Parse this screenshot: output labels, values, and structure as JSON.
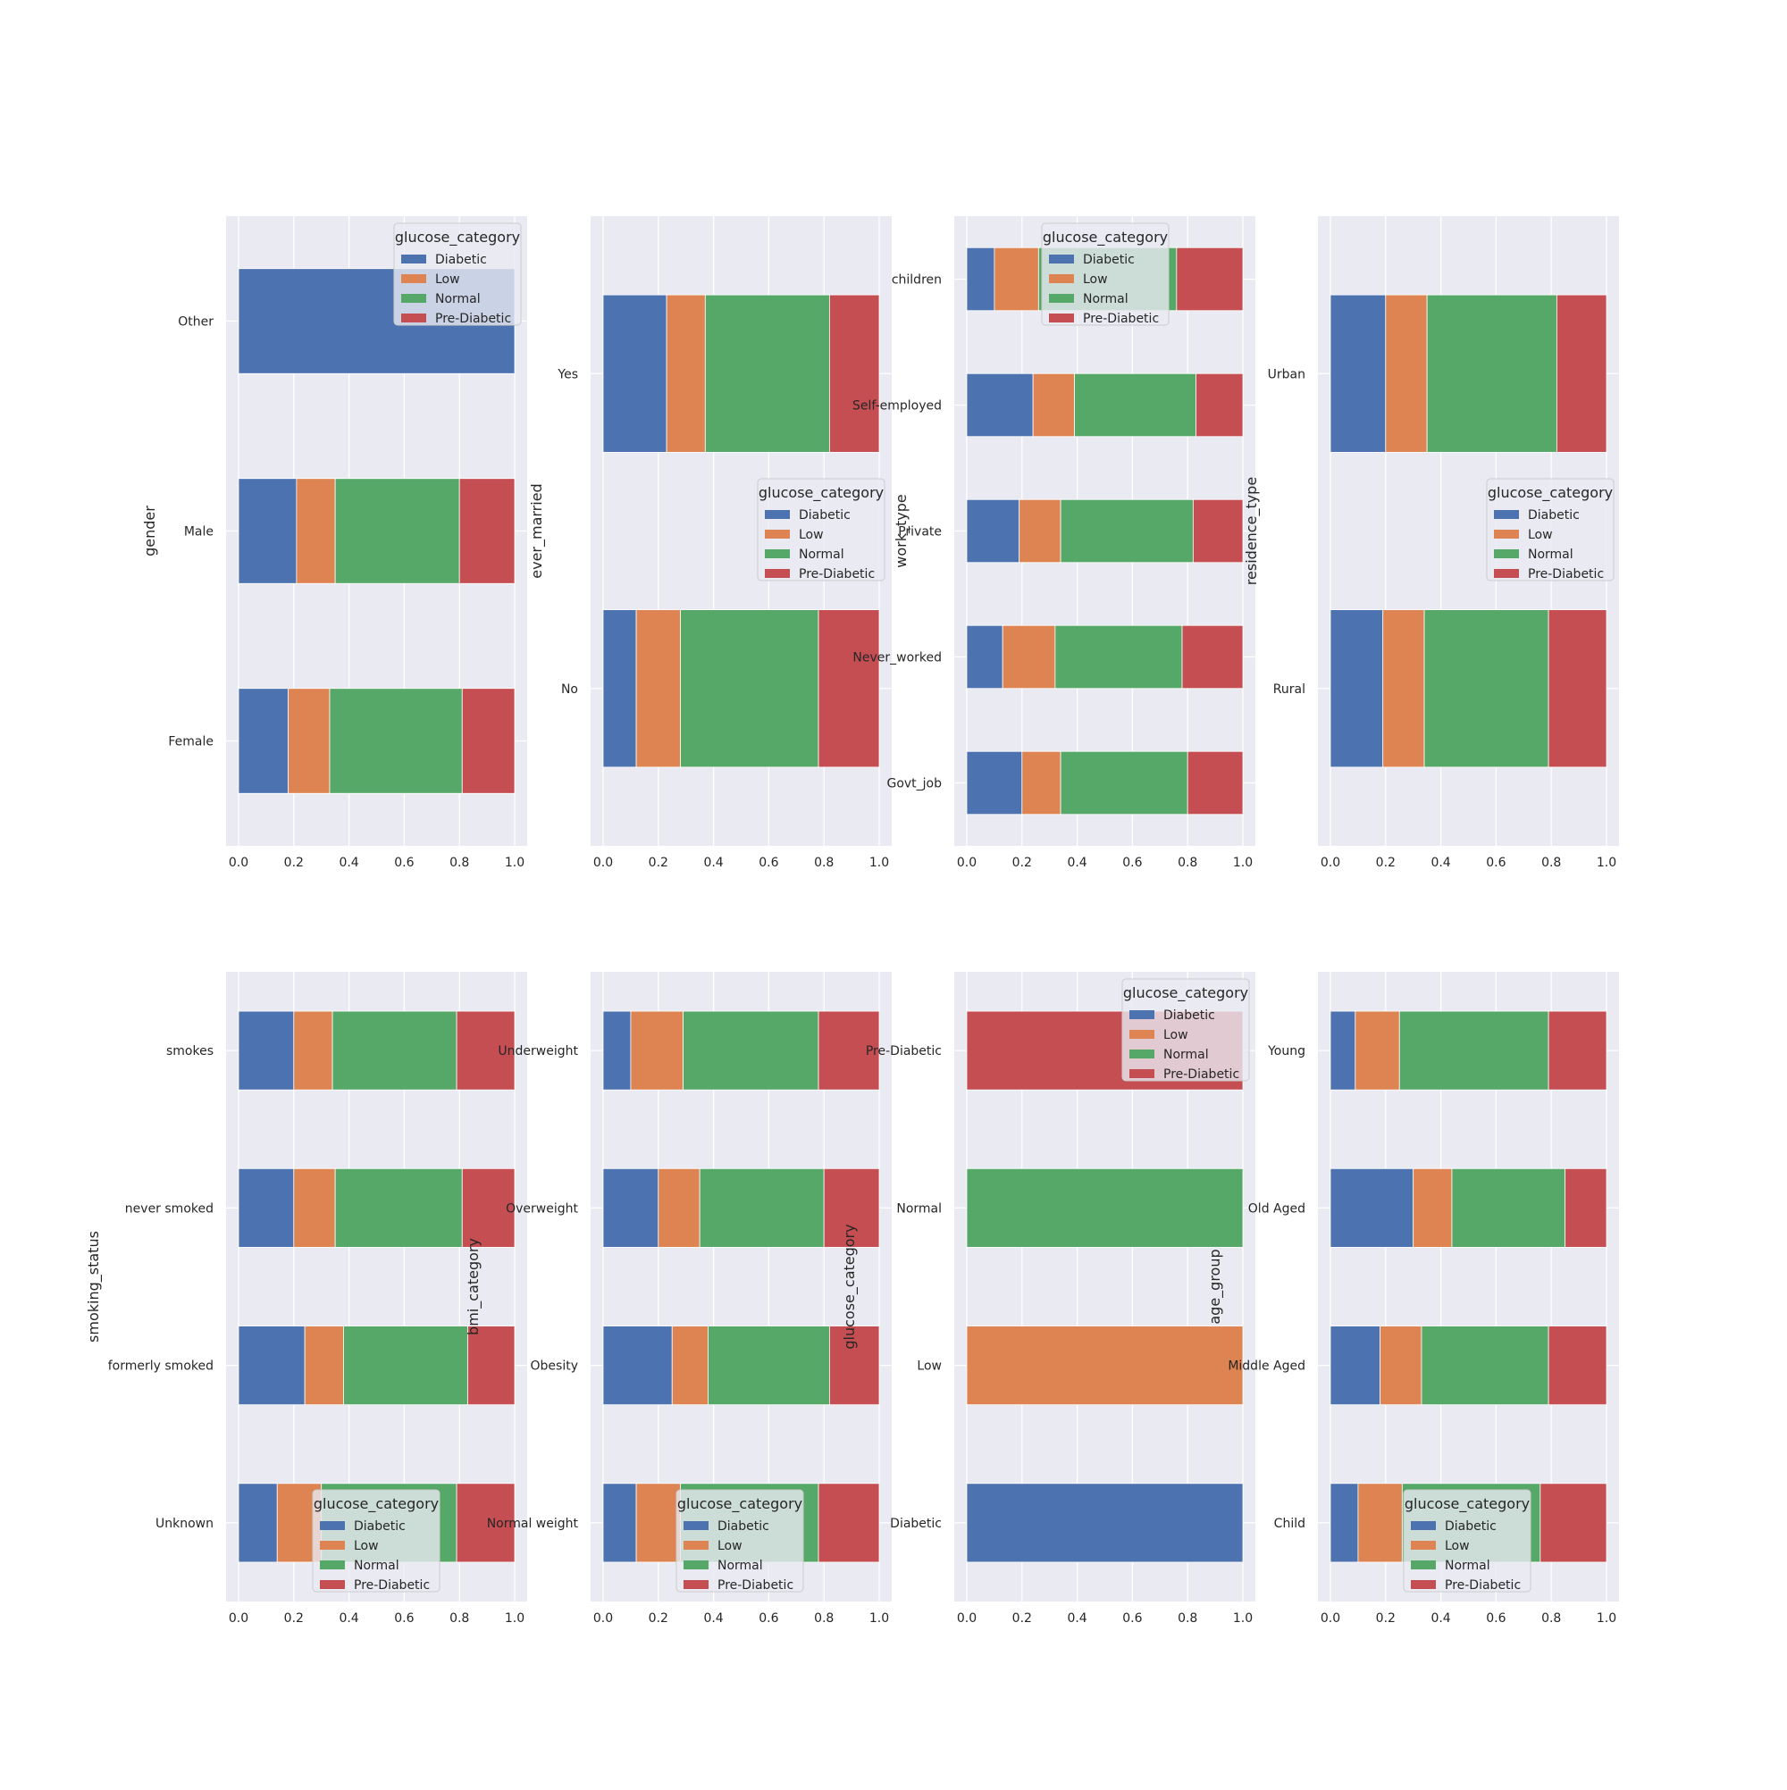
{
  "colors": {
    "Diabetic": "#4c72b0",
    "Low": "#dd8452",
    "Normal": "#55a868",
    "Pre-Diabetic": "#c44e52",
    "plot_background": "#eaeaf2",
    "grid": "#ffffff"
  },
  "legend": {
    "title": "glucose_category",
    "entries": [
      "Diabetic",
      "Low",
      "Normal",
      "Pre-Diabetic"
    ]
  },
  "chart_data": [
    {
      "type": "bar",
      "orientation": "horizontal",
      "stacked": true,
      "ylabel": "gender",
      "categories": [
        "Female",
        "Male",
        "Other"
      ],
      "xlim": [
        0,
        1
      ],
      "xticks": [
        "0.0",
        "0.2",
        "0.4",
        "0.6",
        "0.8",
        "1.0"
      ],
      "grid": true,
      "legend_position": "upper right",
      "series": [
        {
          "name": "Diabetic",
          "values": [
            0.18,
            0.21,
            1.0
          ]
        },
        {
          "name": "Low",
          "values": [
            0.15,
            0.14,
            0.0
          ]
        },
        {
          "name": "Normal",
          "values": [
            0.48,
            0.45,
            0.0
          ]
        },
        {
          "name": "Pre-Diabetic",
          "values": [
            0.19,
            0.2,
            0.0
          ]
        }
      ]
    },
    {
      "type": "bar",
      "orientation": "horizontal",
      "stacked": true,
      "ylabel": "ever_married",
      "categories": [
        "No",
        "Yes"
      ],
      "xlim": [
        0,
        1
      ],
      "xticks": [
        "0.0",
        "0.2",
        "0.4",
        "0.6",
        "0.8",
        "1.0"
      ],
      "grid": true,
      "legend_position": "center right",
      "series": [
        {
          "name": "Diabetic",
          "values": [
            0.12,
            0.23
          ]
        },
        {
          "name": "Low",
          "values": [
            0.16,
            0.14
          ]
        },
        {
          "name": "Normal",
          "values": [
            0.5,
            0.45
          ]
        },
        {
          "name": "Pre-Diabetic",
          "values": [
            0.22,
            0.18
          ]
        }
      ]
    },
    {
      "type": "bar",
      "orientation": "horizontal",
      "stacked": true,
      "ylabel": "work_type",
      "categories": [
        "Govt_job",
        "Never_worked",
        "Private",
        "Self-employed",
        "children"
      ],
      "xlim": [
        0,
        1
      ],
      "xticks": [
        "0.0",
        "0.2",
        "0.4",
        "0.6",
        "0.8",
        "1.0"
      ],
      "grid": true,
      "legend_position": "upper center",
      "series": [
        {
          "name": "Diabetic",
          "values": [
            0.2,
            0.13,
            0.19,
            0.24,
            0.1
          ]
        },
        {
          "name": "Low",
          "values": [
            0.14,
            0.19,
            0.15,
            0.15,
            0.16
          ]
        },
        {
          "name": "Normal",
          "values": [
            0.46,
            0.46,
            0.48,
            0.44,
            0.5
          ]
        },
        {
          "name": "Pre-Diabetic",
          "values": [
            0.2,
            0.22,
            0.18,
            0.17,
            0.24
          ]
        }
      ]
    },
    {
      "type": "bar",
      "orientation": "horizontal",
      "stacked": true,
      "ylabel": "residence_type",
      "categories": [
        "Rural",
        "Urban"
      ],
      "xlim": [
        0,
        1
      ],
      "xticks": [
        "0.0",
        "0.2",
        "0.4",
        "0.6",
        "0.8",
        "1.0"
      ],
      "grid": true,
      "legend_position": "center right",
      "series": [
        {
          "name": "Diabetic",
          "values": [
            0.19,
            0.2
          ]
        },
        {
          "name": "Low",
          "values": [
            0.15,
            0.15
          ]
        },
        {
          "name": "Normal",
          "values": [
            0.45,
            0.47
          ]
        },
        {
          "name": "Pre-Diabetic",
          "values": [
            0.21,
            0.18
          ]
        }
      ]
    },
    {
      "type": "bar",
      "orientation": "horizontal",
      "stacked": true,
      "ylabel": "smoking_status",
      "categories": [
        "Unknown",
        "formerly smoked",
        "never smoked",
        "smokes"
      ],
      "xlim": [
        0,
        1
      ],
      "xticks": [
        "0.0",
        "0.2",
        "0.4",
        "0.6",
        "0.8",
        "1.0"
      ],
      "grid": true,
      "legend_position": "lower center",
      "series": [
        {
          "name": "Diabetic",
          "values": [
            0.14,
            0.24,
            0.2,
            0.2
          ]
        },
        {
          "name": "Low",
          "values": [
            0.16,
            0.14,
            0.15,
            0.14
          ]
        },
        {
          "name": "Normal",
          "values": [
            0.49,
            0.45,
            0.46,
            0.45
          ]
        },
        {
          "name": "Pre-Diabetic",
          "values": [
            0.21,
            0.17,
            0.19,
            0.21
          ]
        }
      ]
    },
    {
      "type": "bar",
      "orientation": "horizontal",
      "stacked": true,
      "ylabel": "bmi_category",
      "categories": [
        "Normal weight",
        "Obesity",
        "Overweight",
        "Underweight"
      ],
      "xlim": [
        0,
        1
      ],
      "xticks": [
        "0.0",
        "0.2",
        "0.4",
        "0.6",
        "0.8",
        "1.0"
      ],
      "grid": true,
      "legend_position": "lower center",
      "series": [
        {
          "name": "Diabetic",
          "values": [
            0.12,
            0.25,
            0.2,
            0.1
          ]
        },
        {
          "name": "Low",
          "values": [
            0.16,
            0.13,
            0.15,
            0.19
          ]
        },
        {
          "name": "Normal",
          "values": [
            0.5,
            0.44,
            0.45,
            0.49
          ]
        },
        {
          "name": "Pre-Diabetic",
          "values": [
            0.22,
            0.18,
            0.2,
            0.22
          ]
        }
      ]
    },
    {
      "type": "bar",
      "orientation": "horizontal",
      "stacked": true,
      "ylabel": "glucose_category",
      "categories": [
        "Diabetic",
        "Low",
        "Normal",
        "Pre-Diabetic"
      ],
      "xlim": [
        0,
        1
      ],
      "xticks": [
        "0.0",
        "0.2",
        "0.4",
        "0.6",
        "0.8",
        "1.0"
      ],
      "grid": true,
      "legend_position": "upper right",
      "series": [
        {
          "name": "Diabetic",
          "values": [
            1.0,
            0.0,
            0.0,
            0.0
          ]
        },
        {
          "name": "Low",
          "values": [
            0.0,
            1.0,
            0.0,
            0.0
          ]
        },
        {
          "name": "Normal",
          "values": [
            0.0,
            0.0,
            1.0,
            0.0
          ]
        },
        {
          "name": "Pre-Diabetic",
          "values": [
            0.0,
            0.0,
            0.0,
            1.0
          ]
        }
      ]
    },
    {
      "type": "bar",
      "orientation": "horizontal",
      "stacked": true,
      "ylabel": "age_group",
      "categories": [
        "Child",
        "Middle Aged",
        "Old Aged",
        "Young"
      ],
      "xlim": [
        0,
        1
      ],
      "xticks": [
        "0.0",
        "0.2",
        "0.4",
        "0.6",
        "0.8",
        "1.0"
      ],
      "grid": true,
      "legend_position": "lower center",
      "series": [
        {
          "name": "Diabetic",
          "values": [
            0.1,
            0.18,
            0.3,
            0.09
          ]
        },
        {
          "name": "Low",
          "values": [
            0.16,
            0.15,
            0.14,
            0.16
          ]
        },
        {
          "name": "Normal",
          "values": [
            0.5,
            0.46,
            0.41,
            0.54
          ]
        },
        {
          "name": "Pre-Diabetic",
          "values": [
            0.24,
            0.21,
            0.15,
            0.21
          ]
        }
      ]
    }
  ]
}
